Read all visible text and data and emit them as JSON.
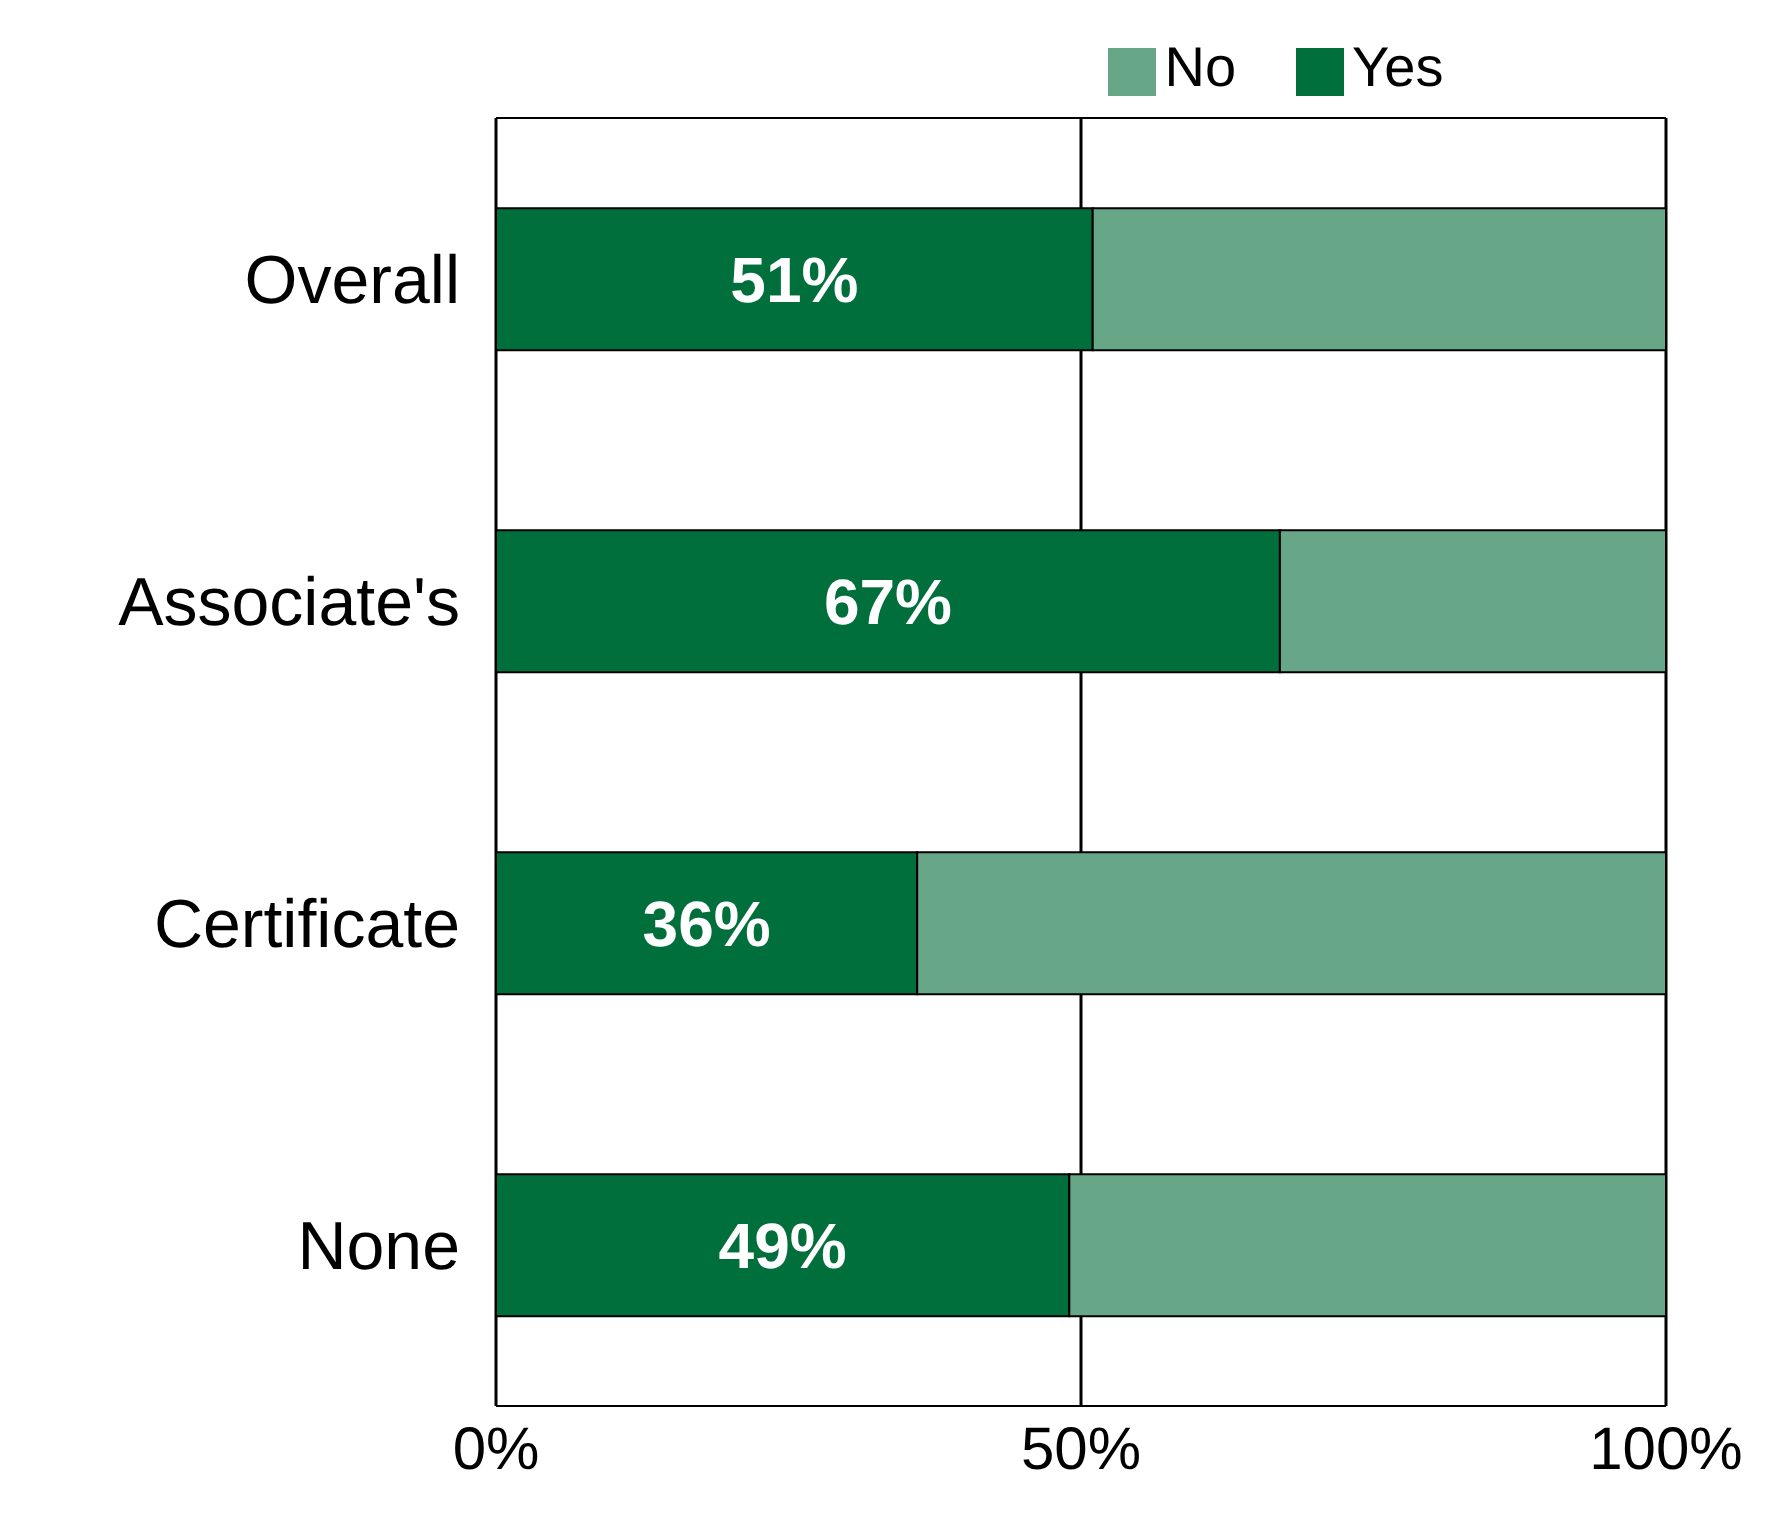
{
  "chart_data": {
    "type": "bar",
    "orientation": "horizontal",
    "stacked": true,
    "categories": [
      "Overall",
      "Associate's",
      "Certificate",
      "None"
    ],
    "series": [
      {
        "name": "Yes",
        "color": "#006f3c",
        "values": [
          51,
          67,
          36,
          49
        ],
        "value_labels": [
          "51%",
          "67%",
          "36%",
          "49%"
        ]
      },
      {
        "name": "No",
        "color": "#68a688",
        "values": [
          49,
          33,
          64,
          51
        ]
      }
    ],
    "xlim": [
      0,
      100
    ],
    "xticks": [
      {
        "value": 0,
        "label": "0%"
      },
      {
        "value": 50,
        "label": "50%"
      },
      {
        "value": 100,
        "label": "100%"
      }
    ],
    "grid": "x",
    "legend": "top"
  }
}
